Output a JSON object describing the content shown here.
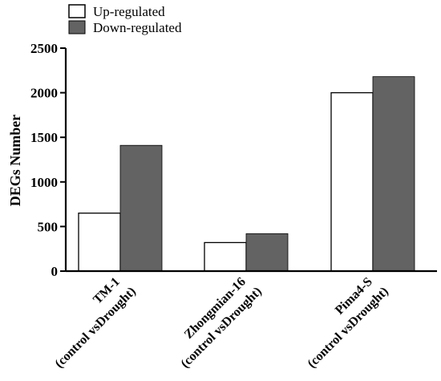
{
  "chart_data": {
    "type": "bar",
    "ylabel": "DEGs Number",
    "ylim": [
      0,
      2500
    ],
    "yticks": [
      0,
      500,
      1000,
      1500,
      2000,
      2500
    ],
    "categories": [
      {
        "line1": "TM-1",
        "line2": "(control vsDrought)"
      },
      {
        "line1": "Zhongmian-16",
        "line2": "(control vsDrought)"
      },
      {
        "line1": "Pima4-S",
        "line2": "(control vsDrought)"
      }
    ],
    "series": [
      {
        "name": "Up-regulated",
        "color": "#ffffff",
        "values": [
          650,
          320,
          2000
        ]
      },
      {
        "name": "Down-regulated",
        "color": "#636363",
        "values": [
          1410,
          420,
          2180
        ]
      }
    ],
    "legend_position": "top-left",
    "grid": false
  }
}
